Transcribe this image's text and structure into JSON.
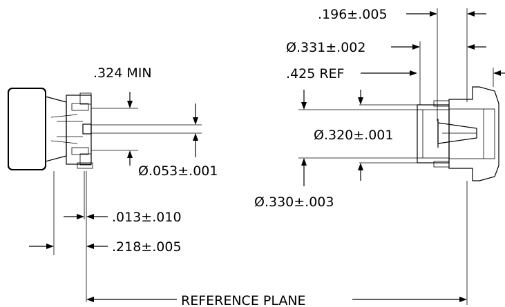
{
  "dimensions": {
    "len_196": ".196±.005",
    "dia_331": "Ø.331±.002",
    "ref_425": ".425  REF",
    "min_324": ".324  MIN",
    "dia_320": "Ø.320±.001",
    "dia_053": "Ø.053±.001",
    "dia_330": "Ø.330±.003",
    "len_013": ".013±.010",
    "len_218": ".218±.005"
  },
  "reference_plane_label": "REFERENCE  PLANE"
}
